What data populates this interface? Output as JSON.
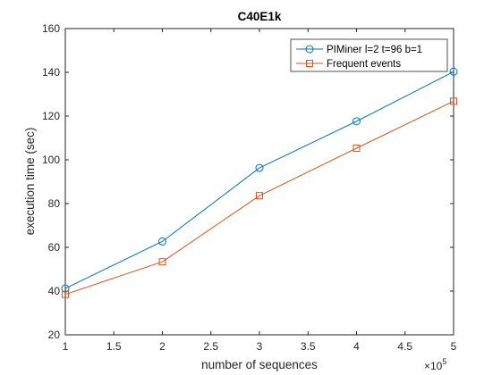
{
  "chart_data": {
    "type": "line",
    "title": "C40E1k",
    "xlabel": "number of sequences",
    "ylabel": "execution time (sec)",
    "x_multiplier_label": "×10",
    "x_multiplier_exponent": "5",
    "x": [
      1,
      2,
      3,
      4,
      5
    ],
    "xlim": [
      1,
      5
    ],
    "ylim": [
      20,
      160
    ],
    "xticks": [
      1,
      1.5,
      2,
      2.5,
      3,
      3.5,
      4,
      4.5,
      5
    ],
    "xtick_labels": [
      "1",
      "1.5",
      "2",
      "2.5",
      "3",
      "3.5",
      "4",
      "4.5",
      "5"
    ],
    "yticks": [
      20,
      40,
      60,
      80,
      100,
      120,
      140,
      160
    ],
    "ytick_labels": [
      "20",
      "40",
      "60",
      "80",
      "100",
      "120",
      "140",
      "160"
    ],
    "grid": false,
    "legend_position": "top-right",
    "series": [
      {
        "name": "PIMiner l=2 t=96 b=1",
        "values": [
          41.2,
          62.7,
          96.3,
          117.6,
          140.3
        ],
        "color": "#0072BD",
        "marker": "circle"
      },
      {
        "name": "Frequent events",
        "values": [
          38.5,
          53.4,
          83.6,
          105.3,
          126.8
        ],
        "color": "#D95319",
        "marker": "square"
      }
    ]
  }
}
